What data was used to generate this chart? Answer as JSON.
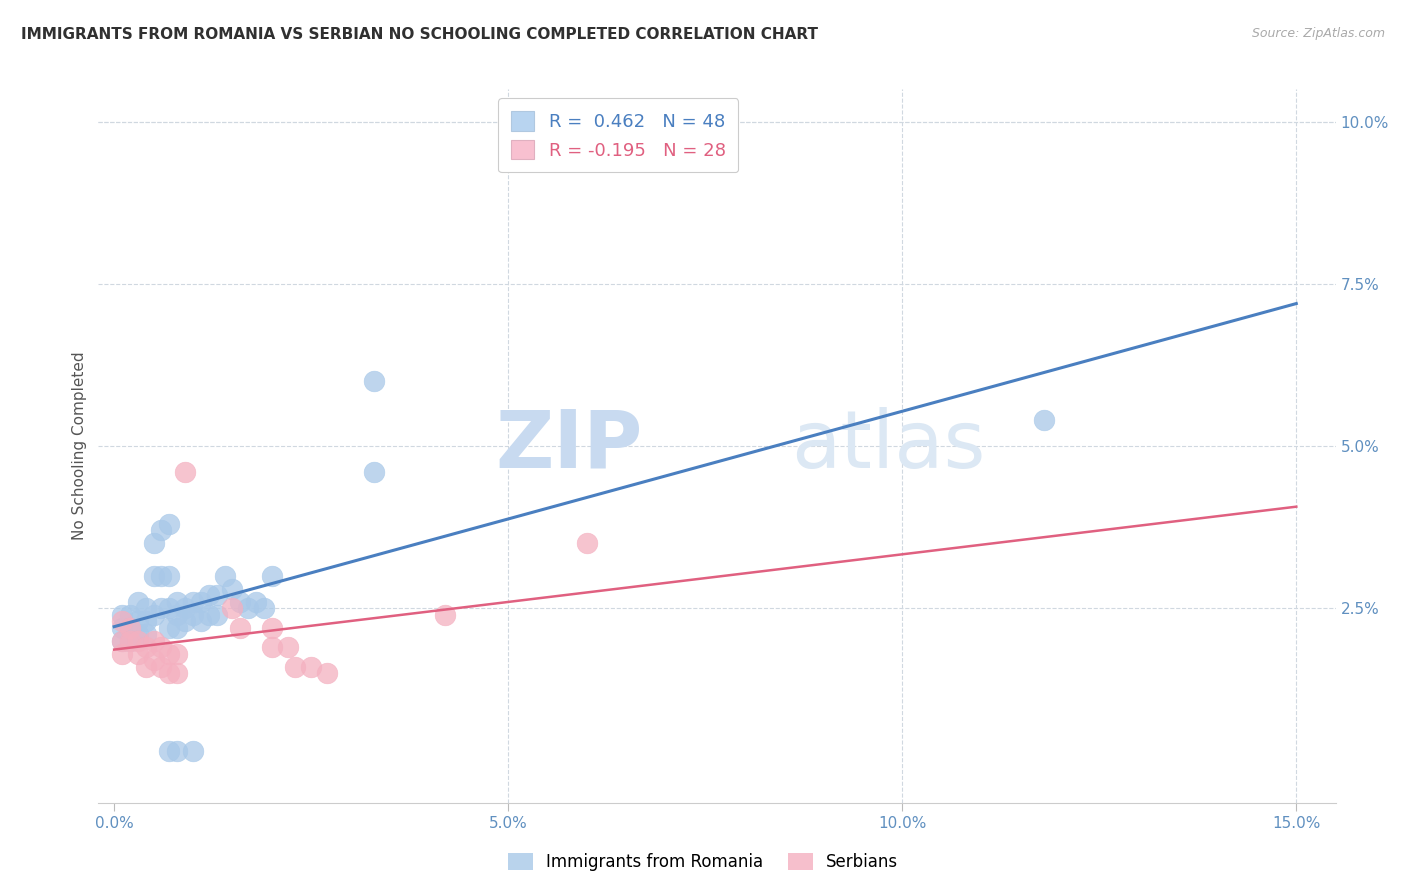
{
  "title": "IMMIGRANTS FROM ROMANIA VS SERBIAN NO SCHOOLING COMPLETED CORRELATION CHART",
  "source": "Source: ZipAtlas.com",
  "ylabel": "No Schooling Completed",
  "xlabel_vals": [
    0.0,
    0.05,
    0.1,
    0.15
  ],
  "ylabel_vals_right": [
    0.025,
    0.05,
    0.075,
    0.1
  ],
  "ylabel_labels_right": [
    "2.5%",
    "5.0%",
    "7.5%",
    "10.0%"
  ],
  "xlim": [
    -0.002,
    0.155
  ],
  "ylim": [
    -0.005,
    0.105
  ],
  "blue_R": "0.462",
  "blue_N": "48",
  "pink_R": "-0.195",
  "pink_N": "28",
  "blue_color": "#a8c8e8",
  "pink_color": "#f4b0c0",
  "blue_line_color": "#4a7fc0",
  "pink_line_color": "#e06080",
  "legend_box_blue": "#b8d4f0",
  "legend_box_pink": "#f8c0d0",
  "watermark_color": "#dce8f4",
  "background_color": "#ffffff",
  "grid_color": "#d0d8e0",
  "title_color": "#303030",
  "blue_scatter": [
    [
      0.001,
      0.024
    ],
    [
      0.001,
      0.022
    ],
    [
      0.001,
      0.02
    ],
    [
      0.002,
      0.024
    ],
    [
      0.002,
      0.022
    ],
    [
      0.002,
      0.02
    ],
    [
      0.003,
      0.026
    ],
    [
      0.003,
      0.023
    ],
    [
      0.003,
      0.021
    ],
    [
      0.004,
      0.025
    ],
    [
      0.004,
      0.023
    ],
    [
      0.004,
      0.021
    ],
    [
      0.005,
      0.035
    ],
    [
      0.005,
      0.03
    ],
    [
      0.005,
      0.024
    ],
    [
      0.006,
      0.037
    ],
    [
      0.006,
      0.03
    ],
    [
      0.006,
      0.025
    ],
    [
      0.007,
      0.038
    ],
    [
      0.007,
      0.03
    ],
    [
      0.007,
      0.025
    ],
    [
      0.007,
      0.022
    ],
    [
      0.008,
      0.026
    ],
    [
      0.008,
      0.024
    ],
    [
      0.008,
      0.022
    ],
    [
      0.009,
      0.025
    ],
    [
      0.009,
      0.023
    ],
    [
      0.01,
      0.026
    ],
    [
      0.01,
      0.024
    ],
    [
      0.011,
      0.026
    ],
    [
      0.011,
      0.023
    ],
    [
      0.012,
      0.027
    ],
    [
      0.012,
      0.024
    ],
    [
      0.013,
      0.027
    ],
    [
      0.013,
      0.024
    ],
    [
      0.014,
      0.03
    ],
    [
      0.015,
      0.028
    ],
    [
      0.016,
      0.026
    ],
    [
      0.017,
      0.025
    ],
    [
      0.018,
      0.026
    ],
    [
      0.019,
      0.025
    ],
    [
      0.02,
      0.03
    ],
    [
      0.007,
      0.003
    ],
    [
      0.008,
      0.003
    ],
    [
      0.01,
      0.003
    ],
    [
      0.033,
      0.06
    ],
    [
      0.033,
      0.046
    ],
    [
      0.118,
      0.054
    ]
  ],
  "pink_scatter": [
    [
      0.001,
      0.023
    ],
    [
      0.001,
      0.02
    ],
    [
      0.001,
      0.018
    ],
    [
      0.002,
      0.022
    ],
    [
      0.002,
      0.02
    ],
    [
      0.003,
      0.02
    ],
    [
      0.003,
      0.018
    ],
    [
      0.004,
      0.019
    ],
    [
      0.004,
      0.016
    ],
    [
      0.005,
      0.02
    ],
    [
      0.005,
      0.017
    ],
    [
      0.006,
      0.019
    ],
    [
      0.006,
      0.016
    ],
    [
      0.007,
      0.018
    ],
    [
      0.007,
      0.015
    ],
    [
      0.008,
      0.018
    ],
    [
      0.008,
      0.015
    ],
    [
      0.009,
      0.046
    ],
    [
      0.015,
      0.025
    ],
    [
      0.016,
      0.022
    ],
    [
      0.02,
      0.022
    ],
    [
      0.02,
      0.019
    ],
    [
      0.022,
      0.019
    ],
    [
      0.023,
      0.016
    ],
    [
      0.025,
      0.016
    ],
    [
      0.027,
      0.015
    ],
    [
      0.042,
      0.024
    ],
    [
      0.06,
      0.035
    ]
  ]
}
